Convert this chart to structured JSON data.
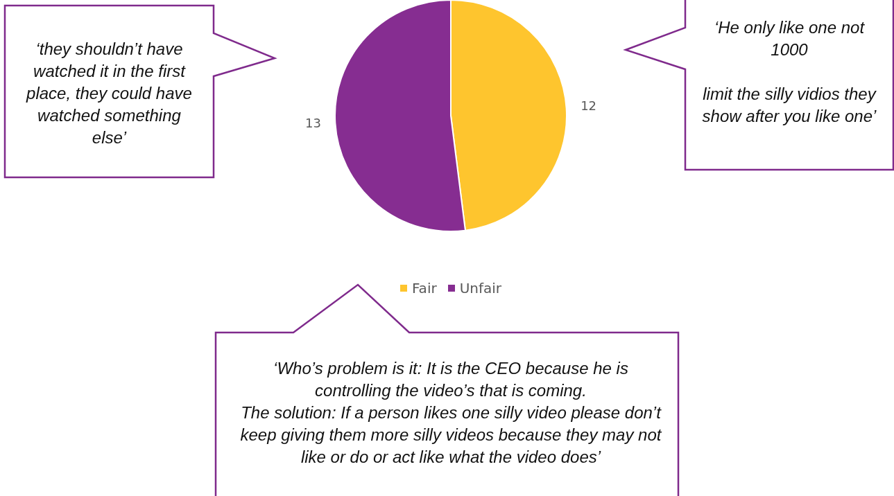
{
  "chart_data": {
    "type": "pie",
    "categories": [
      "Fair",
      "Unfair"
    ],
    "values": [
      12,
      13
    ],
    "colors": [
      "#fec52e",
      "#862d91"
    ],
    "data_labels": true,
    "legend": "bottom",
    "annotations": [
      "‘they shouldn’t have watched it in the first place, they could have watched something else’",
      "‘He only like one not 1000\n\nlimit the silly vidios they show after you like one’",
      "‘Who’s problem is it: It is the CEO because he is controlling the video’s that is coming.\nThe solution: If a person likes one silly video please don’t keep giving them more silly videos because they may not like or do or act like what the video does’"
    ]
  }
}
